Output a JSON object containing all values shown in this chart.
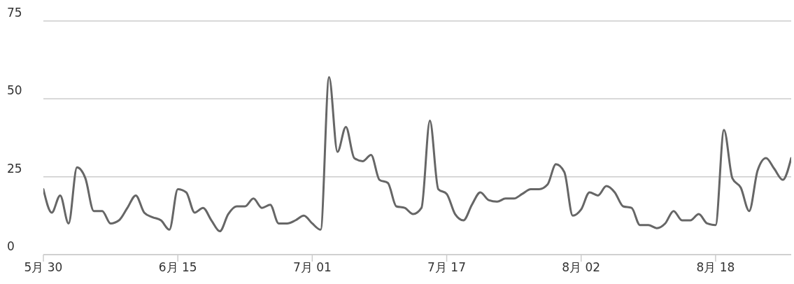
{
  "chart_data": {
    "type": "line",
    "x": [
      "--05-30",
      "--05-31",
      "--06-01",
      "--06-02",
      "--06-03",
      "--06-04",
      "--06-05",
      "--06-06",
      "--06-07",
      "--06-08",
      "--06-09",
      "--06-10",
      "--06-11",
      "--06-12",
      "--06-13",
      "--06-14",
      "--06-15",
      "--06-16",
      "--06-17",
      "--06-18",
      "--06-19",
      "--06-20",
      "--06-21",
      "--06-22",
      "--06-23",
      "--06-24",
      "--06-25",
      "--06-26",
      "--06-27",
      "--06-28",
      "--06-29",
      "--06-30",
      "--07-01",
      "--07-02",
      "--07-03",
      "--07-04",
      "--07-05",
      "--07-06",
      "--07-07",
      "--07-08",
      "--07-09",
      "--07-10",
      "--07-11",
      "--07-12",
      "--07-13",
      "--07-14",
      "--07-15",
      "--07-16",
      "--07-17",
      "--07-18",
      "--07-19",
      "--07-20",
      "--07-21",
      "--07-22",
      "--07-23",
      "--07-24",
      "--07-25",
      "--07-26",
      "--07-27",
      "--07-28",
      "--07-29",
      "--07-30",
      "--07-31",
      "--08-01",
      "--08-02",
      "--08-03",
      "--08-04",
      "--08-05",
      "--08-06",
      "--08-07",
      "--08-08",
      "--08-09",
      "--08-10",
      "--08-11",
      "--08-12",
      "--08-13",
      "--08-14",
      "--08-15",
      "--08-16",
      "--08-17",
      "--08-18",
      "--08-19",
      "--08-20",
      "--08-21",
      "--08-22",
      "--08-23",
      "--08-24",
      "--08-25",
      "--08-26",
      "--08-27"
    ],
    "series": [
      {
        "color": "#666666",
        "values": [
          21,
          13.5,
          19,
          10,
          28,
          24.5,
          14,
          14,
          10,
          11,
          15,
          19,
          13.5,
          12,
          11,
          8,
          21,
          20,
          13.5,
          15,
          11,
          7.5,
          13,
          15.5,
          15.5,
          18,
          15,
          16,
          10,
          10,
          11,
          12.5,
          10,
          8,
          57,
          33,
          41,
          31,
          30,
          32,
          24,
          23,
          15.5,
          15,
          13,
          15,
          43,
          21,
          19.5,
          13,
          11,
          16,
          20,
          17.5,
          17,
          18,
          18,
          19.5,
          21,
          21,
          22.5,
          29,
          26.5,
          12.5,
          14.5,
          20,
          19,
          22,
          20,
          15.5,
          15,
          9.5,
          9.5,
          8.5,
          10,
          14,
          11,
          11,
          13,
          10,
          9.5,
          40,
          24.5,
          21.5,
          14,
          27,
          31,
          27.5,
          24,
          31
        ]
      }
    ],
    "xlim": [
      "--05-30",
      "--08-27"
    ],
    "xticks": [
      {
        "value": "--05-30",
        "label": "5月 30"
      },
      {
        "value": "--06-15",
        "label": "6月 15"
      },
      {
        "value": "--07-01",
        "label": "7月 01"
      },
      {
        "value": "--07-17",
        "label": "7月 17"
      },
      {
        "value": "--08-02",
        "label": "8月 02"
      },
      {
        "value": "--08-18",
        "label": "8月 18"
      }
    ],
    "ylim": [
      0,
      75
    ],
    "yticks": [
      0,
      25,
      50,
      75
    ],
    "grid": "y",
    "marker": "none",
    "line_style": "solid"
  }
}
